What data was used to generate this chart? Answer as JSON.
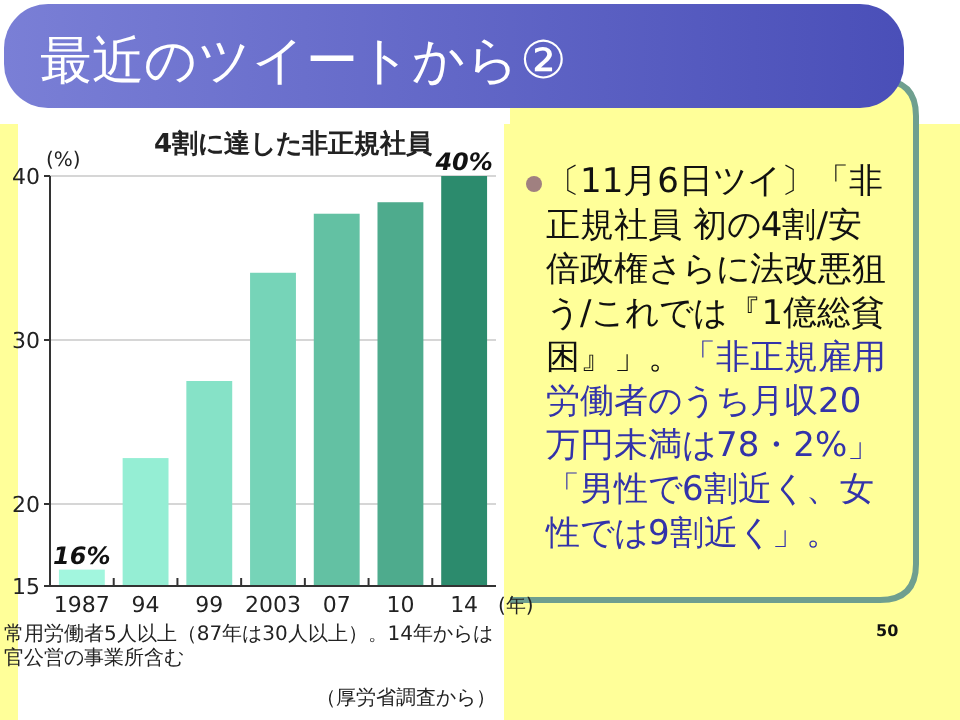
{
  "chart_data": {
    "type": "bar",
    "title": "4割に達した非正規社員",
    "ylabel": "(%)",
    "xlabel": "(年)",
    "categories": [
      "1987",
      "94",
      "99",
      "2003",
      "07",
      "10",
      "14"
    ],
    "values": [
      16,
      22.8,
      27.5,
      34.1,
      37.7,
      38.4,
      40
    ],
    "colors": [
      "#a2f6de",
      "#95eed4",
      "#86e2c7",
      "#76d4b8",
      "#63c1a3",
      "#4eab8d",
      "#2c8b6d"
    ],
    "value_labels": [
      "16%",
      null,
      null,
      null,
      null,
      null,
      "40%"
    ],
    "ylim": [
      15,
      40
    ],
    "yticks": [
      15,
      20,
      30,
      40
    ],
    "grid": "y",
    "annotations": [
      "最近のツイートから②",
      "〔11月6日ツイ〕「非正規社員 初の4割/安倍政権さらに法改悪狙う/これでは『1億総貧困』」。",
      "「非正規雇用労働者のうち月収20万円未満は78・2%」「男性で6割近く、女性では9割近く」。",
      "常用労働者5人以上（87年は30人以上）。14年からは官公営の事業所含む",
      "（厚労省調査から）",
      "50"
    ]
  }
}
